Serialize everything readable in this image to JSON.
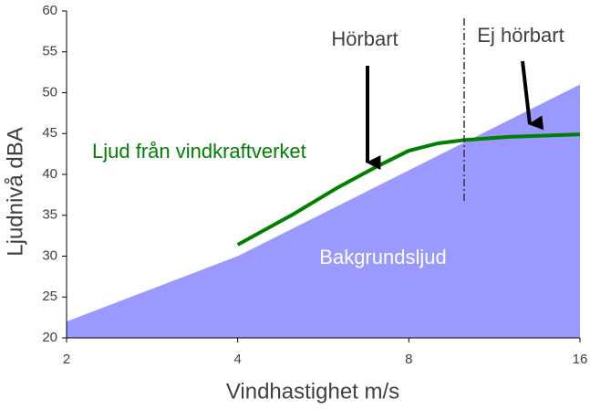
{
  "chart_data": {
    "type": "line",
    "xlabel": "Vindhastighet m/s",
    "ylabel": "Ljudnivå dBA",
    "xscale": "log",
    "xlim": [
      2,
      16
    ],
    "xticks": [
      2,
      4,
      8,
      16
    ],
    "ylim": [
      20,
      60
    ],
    "yticks": [
      20,
      25,
      30,
      35,
      40,
      45,
      50,
      55,
      60
    ],
    "annotations": [
      "Hörbart",
      "Ej hörbart"
    ],
    "series": [
      {
        "name": "Bakgrundsljud",
        "type": "area",
        "color": "#9999ff",
        "x": [
          2,
          4,
          8,
          16
        ],
        "values": [
          22,
          30,
          40.5,
          51
        ]
      },
      {
        "name": "Ljud från vindkraftverket",
        "type": "line",
        "color": "#008000",
        "x": [
          4,
          5,
          6,
          7,
          8,
          9,
          10,
          12,
          16
        ],
        "values": [
          31.4,
          35.1,
          38.4,
          40.9,
          42.9,
          43.8,
          44.2,
          44.6,
          44.9
        ]
      }
    ]
  }
}
